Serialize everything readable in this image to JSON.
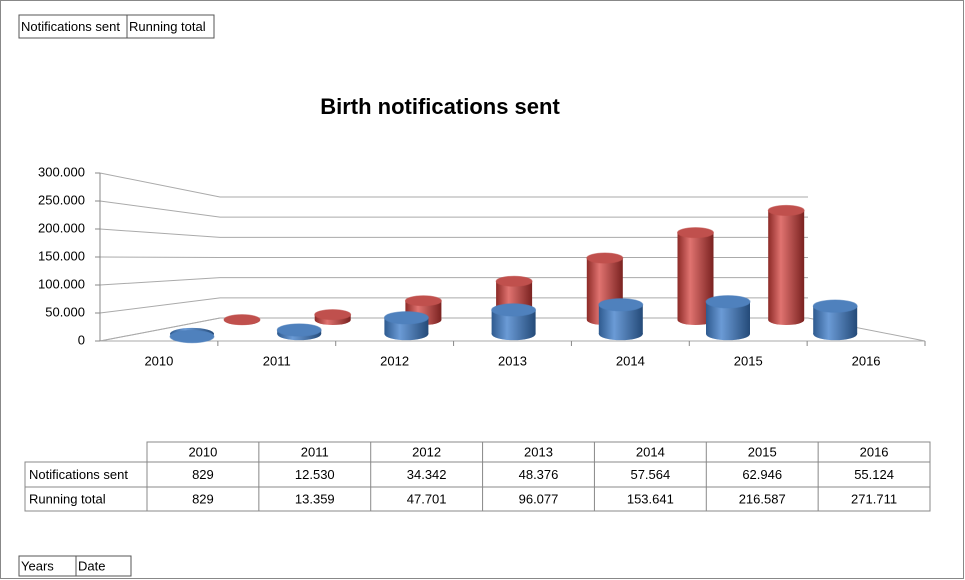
{
  "chart_data": {
    "type": "cylinder3d",
    "title": "Birth notifications sent",
    "categories": [
      "2010",
      "2011",
      "2012",
      "2013",
      "2014",
      "2015",
      "2016"
    ],
    "series": [
      {
        "name": "Notifications sent",
        "color": "#4f81bd",
        "values": [
          829,
          12530,
          34342,
          48376,
          57564,
          62946,
          55124
        ],
        "value_labels": [
          "829",
          "12.530",
          "34.342",
          "48.376",
          "57.564",
          "62.946",
          "55.124"
        ]
      },
      {
        "name": "Running total",
        "color": "#c0504d",
        "values": [
          829,
          13359,
          47701,
          96077,
          153641,
          216587,
          271711
        ],
        "value_labels": [
          "829",
          "13.359",
          "47.701",
          "96.077",
          "153.641",
          "216.587",
          "271.711"
        ]
      }
    ],
    "ylim": [
      0,
      300000
    ],
    "yticks": [
      0,
      {
        "value": 50000,
        "label": "50.000"
      },
      {
        "value": 100000,
        "label": "100.000"
      },
      {
        "value": 150000,
        "label": "150.000"
      },
      {
        "value": 200000,
        "label": "200.000"
      },
      {
        "value": 250000,
        "label": "250.000"
      },
      {
        "value": 300000,
        "label": "300.000"
      }
    ],
    "grid": true,
    "axis_fields": [
      "Years",
      "Date"
    ]
  }
}
